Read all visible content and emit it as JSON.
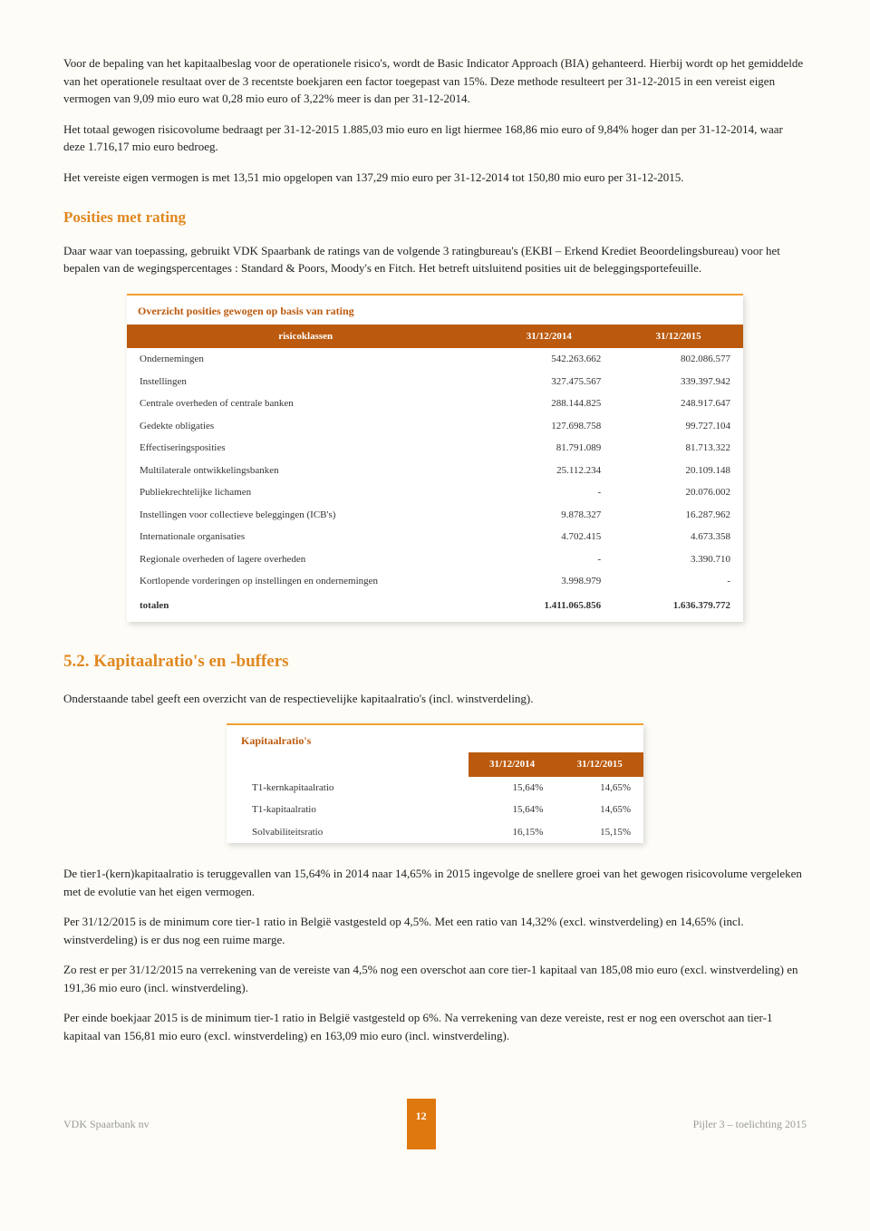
{
  "para1": "Voor de bepaling van het kapitaalbeslag voor de operationele risico's, wordt de Basic Indicator Approach (BIA) gehanteerd. Hierbij wordt op het gemiddelde van het operationele resultaat over de 3 recentste boekjaren een factor toegepast van 15%. Deze methode resulteert per 31-12-2015 in een vereist eigen vermogen van 9,09 mio euro wat 0,28 mio euro of 3,22% meer is dan per 31-12-2014.",
  "para2": "Het totaal gewogen risicovolume bedraagt per 31-12-2015 1.885,03 mio euro en ligt hiermee 168,86 mio euro of 9,84% hoger dan per 31-12-2014, waar deze 1.716,17 mio euro bedroeg.",
  "para3": "Het vereiste eigen vermogen is met 13,51 mio opgelopen van 137,29 mio euro per 31-12-2014 tot 150,80 mio euro per 31-12-2015.",
  "heading1": "Posities met rating",
  "para4": "Daar waar van toepassing, gebruikt VDK Spaarbank de ratings van de volgende 3 ratingbureau's (EKBI – Erkend Krediet Beoordelingsbureau) voor het bepalen van de wegingspercentages : Standard & Poors, Moody's en Fitch. Het betreft uitsluitend posities uit de beleggingsportefeuille.",
  "table1": {
    "title": "Overzicht posities gewogen op basis van rating",
    "col_header": "risicoklassen",
    "col_2014": "31/12/2014",
    "col_2015": "31/12/2015",
    "rows": [
      {
        "label": "Ondernemingen",
        "v2014": "542.263.662",
        "v2015": "802.086.577"
      },
      {
        "label": "Instellingen",
        "v2014": "327.475.567",
        "v2015": "339.397.942"
      },
      {
        "label": "Centrale overheden of centrale banken",
        "v2014": "288.144.825",
        "v2015": "248.917.647"
      },
      {
        "label": "Gedekte obligaties",
        "v2014": "127.698.758",
        "v2015": "99.727.104"
      },
      {
        "label": "Effectiseringsposities",
        "v2014": "81.791.089",
        "v2015": "81.713.322"
      },
      {
        "label": "Multilaterale ontwikkelingsbanken",
        "v2014": "25.112.234",
        "v2015": "20.109.148"
      },
      {
        "label": "Publiekrechtelijke lichamen",
        "v2014": "-",
        "v2015": "20.076.002"
      },
      {
        "label": "Instellingen voor collectieve beleggingen (ICB's)",
        "v2014": "9.878.327",
        "v2015": "16.287.962"
      },
      {
        "label": "Internationale organisaties",
        "v2014": "4.702.415",
        "v2015": "4.673.358"
      },
      {
        "label": "Regionale overheden of lagere overheden",
        "v2014": "-",
        "v2015": "3.390.710"
      },
      {
        "label": "Kortlopende vorderingen op instellingen en ondernemingen",
        "v2014": "3.998.979",
        "v2015": "-"
      }
    ],
    "total_label": "totalen",
    "total_2014": "1.411.065.856",
    "total_2015": "1.636.379.772"
  },
  "heading2": "5.2.  Kapitaalratio's en -buffers",
  "para5": "Onderstaande tabel geeft een overzicht van de respectievelijke kapitaalratio's (incl. winstverdeling).",
  "table2": {
    "title": "Kapitaalratio's",
    "col_2014": "31/12/2014",
    "col_2015": "31/12/2015",
    "rows": [
      {
        "label": "T1-kernkapitaalratio",
        "v2014": "15,64%",
        "v2015": "14,65%"
      },
      {
        "label": "T1-kapitaalratio",
        "v2014": "15,64%",
        "v2015": "14,65%"
      },
      {
        "label": "Solvabiliteitsratio",
        "v2014": "16,15%",
        "v2015": "15,15%"
      }
    ]
  },
  "para6": "De tier1-(kern)kapitaalratio is teruggevallen van 15,64% in 2014 naar 14,65% in 2015 ingevolge de snellere groei van het gewogen risicovolume vergeleken met de evolutie van het eigen vermogen.",
  "para7": "Per 31/12/2015 is de minimum core tier-1 ratio in België vastgesteld op 4,5%. Met een ratio van 14,32% (excl. winstverdeling) en 14,65% (incl. winstverdeling) is er dus nog een ruime marge.",
  "para8": "Zo rest er per 31/12/2015 na verrekening van de vereiste van 4,5% nog een overschot aan core tier-1 kapitaal van 185,08 mio euro (excl. winstverdeling) en 191,36 mio euro (incl. winstverdeling).",
  "para9": "Per einde boekjaar 2015 is de minimum tier-1 ratio in België vastgesteld op 6%. Na verrekening van deze vereiste, rest er nog een overschot aan tier-1 kapitaal van 156,81 mio euro (excl. winstverdeling) en 163,09 mio euro (incl. winstverdeling).",
  "footer_left": "VDK Spaarbank nv",
  "footer_page": "12",
  "footer_right": "Pijler 3 – toelichting 2015"
}
